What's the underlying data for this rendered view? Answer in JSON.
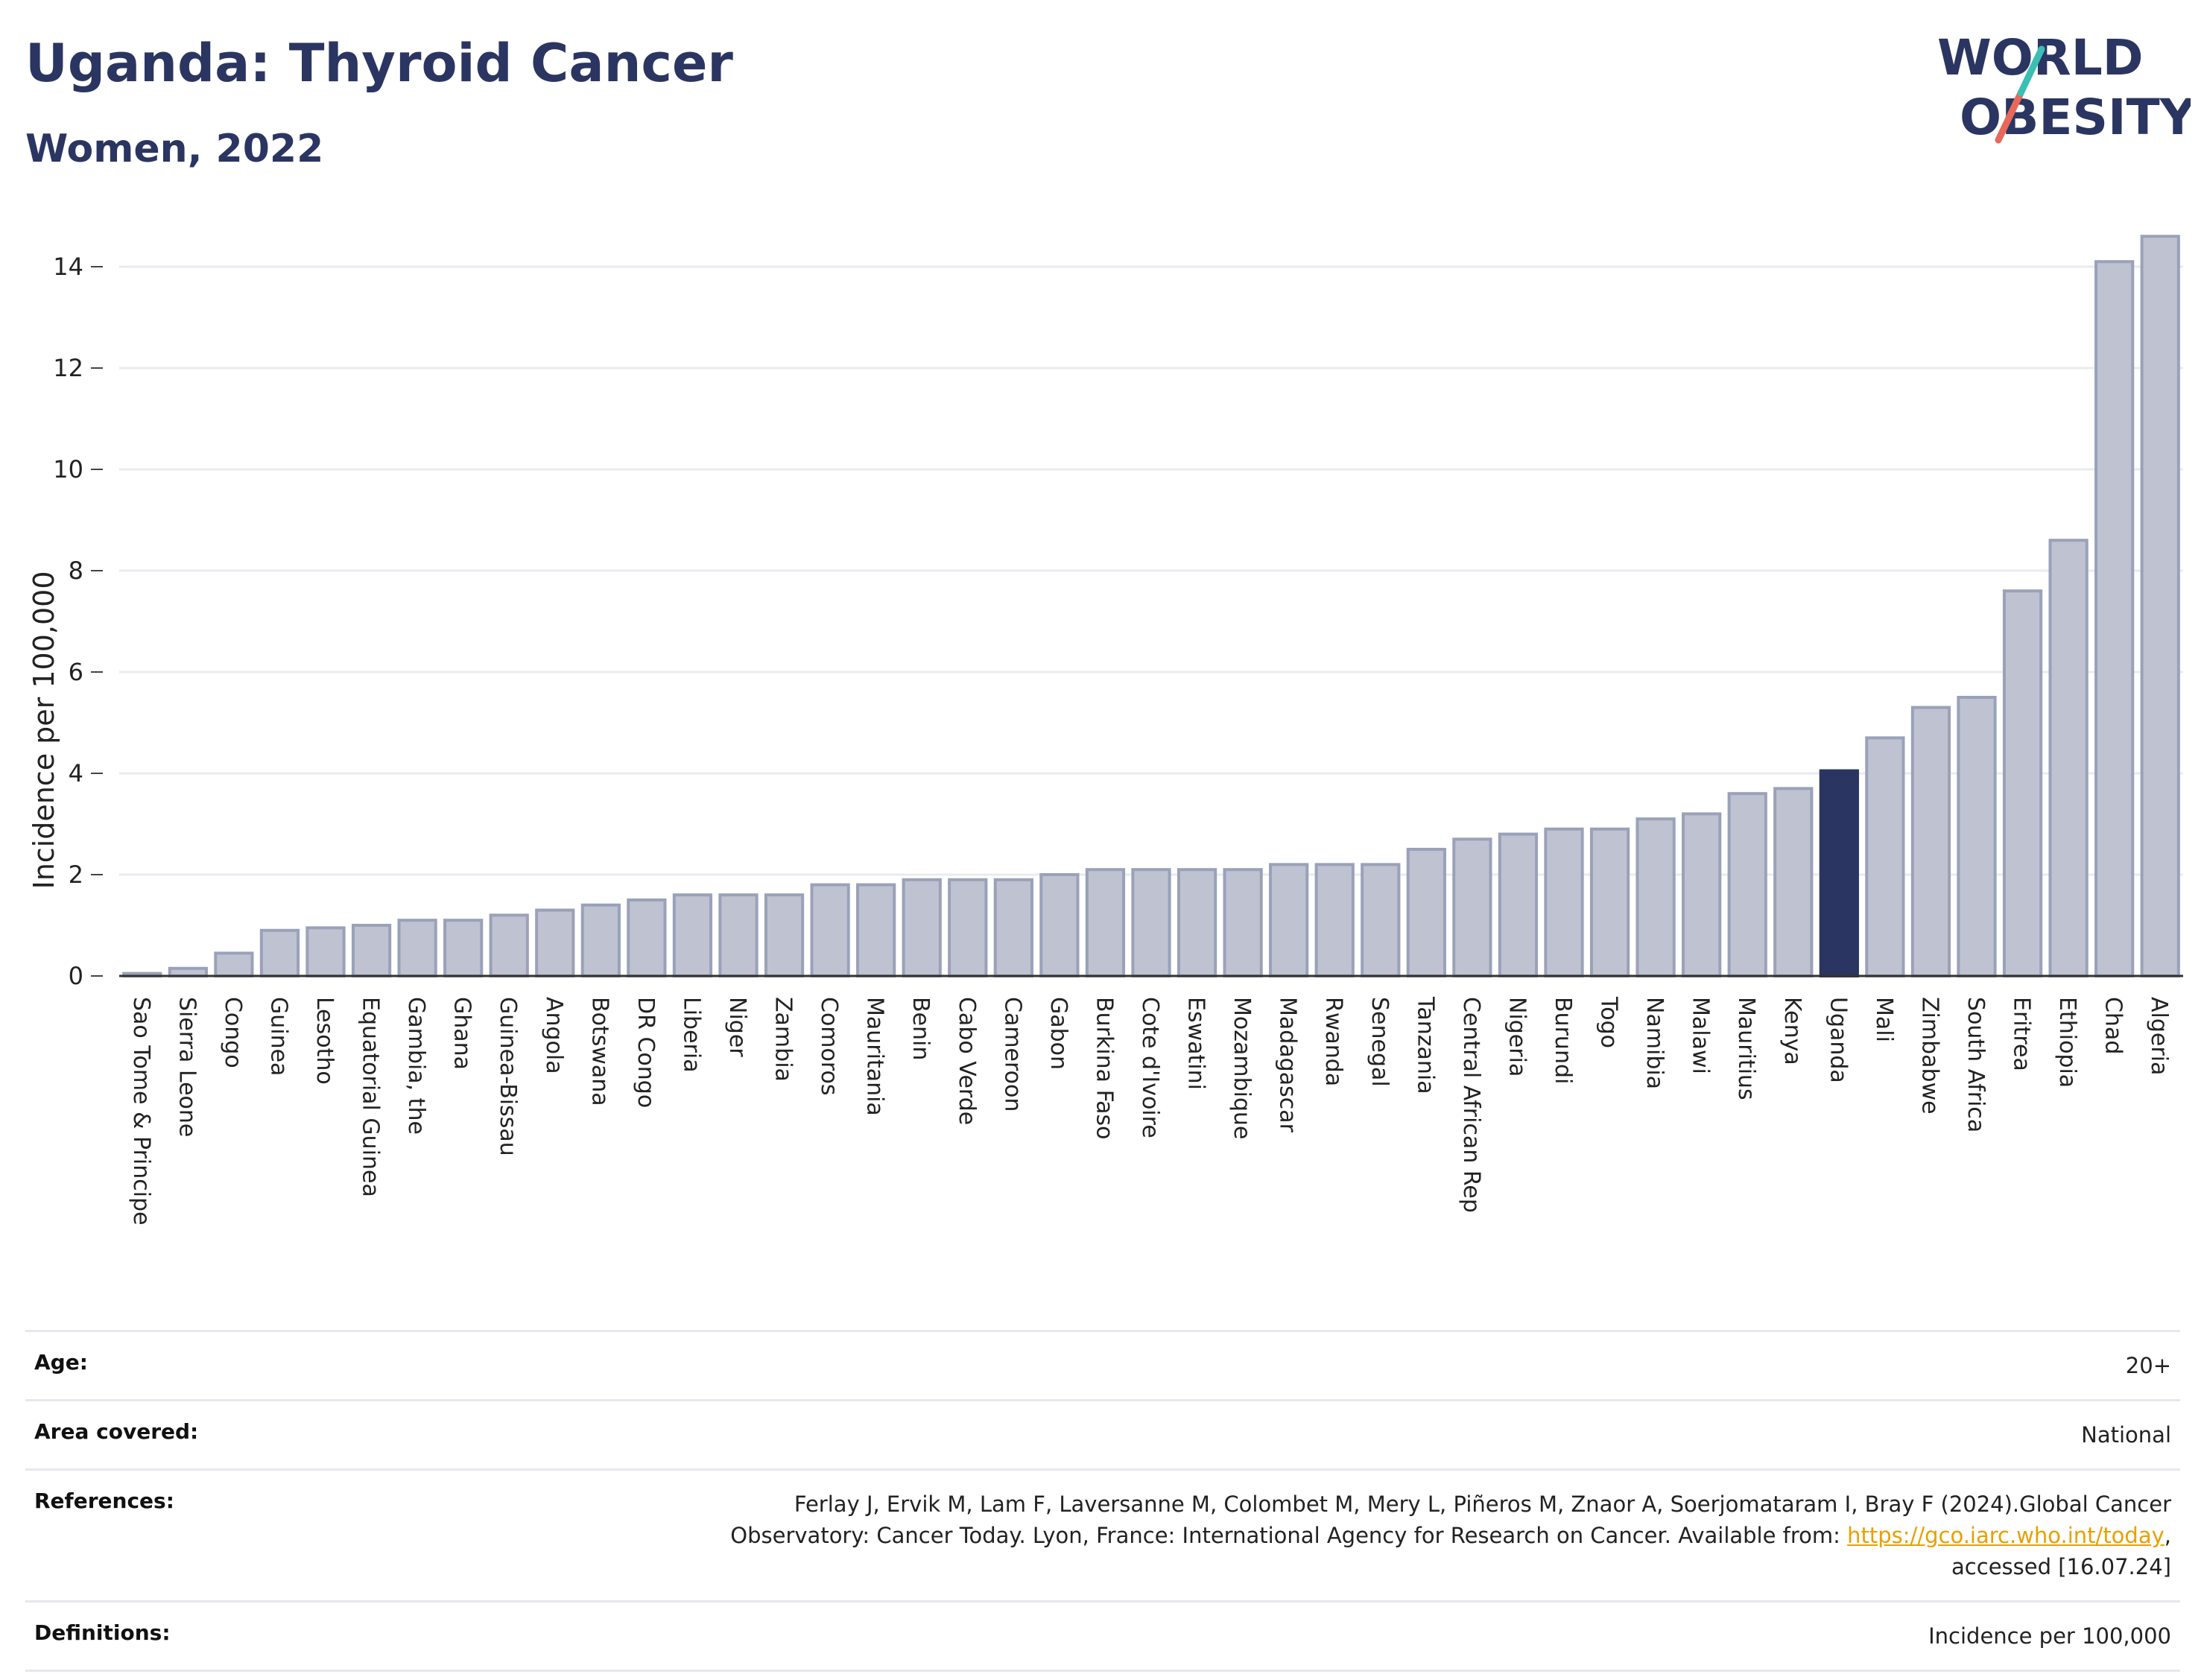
{
  "header": {
    "title": "Uganda: Thyroid Cancer",
    "subtitle": "Women, 2022"
  },
  "logo": {
    "line1": "WORLD",
    "line2": "OBESITY"
  },
  "colors": {
    "bar": "#bfc3d1",
    "bar_edge": "#9aa1b9",
    "highlight": "#2b3561",
    "title": "#2b3561",
    "logo_teal": "#3bbfb4",
    "logo_coral": "#e8685a",
    "link": "#e8a000"
  },
  "chart_data": {
    "type": "bar",
    "ylabel": "Incidence per 100,000",
    "ylim": [
      0,
      15
    ],
    "yticks": [
      0,
      2,
      4,
      6,
      8,
      10,
      12,
      14
    ],
    "grid": true,
    "highlight": "Uganda",
    "categories": [
      "Sao Tome & Principe",
      "Sierra Leone",
      "Congo",
      "Guinea",
      "Lesotho",
      "Equatorial Guinea",
      "Gambia, the",
      "Ghana",
      "Guinea-Bissau",
      "Angola",
      "Botswana",
      "DR Congo",
      "Liberia",
      "Niger",
      "Zambia",
      "Comoros",
      "Mauritania",
      "Benin",
      "Cabo Verde",
      "Cameroon",
      "Gabon",
      "Burkina Faso",
      "Cote d'Ivoire",
      "Eswatini",
      "Mozambique",
      "Madagascar",
      "Rwanda",
      "Senegal",
      "Tanzania",
      "Central African Rep",
      "Nigeria",
      "Burundi",
      "Togo",
      "Namibia",
      "Malawi",
      "Mauritius",
      "Kenya",
      "Uganda",
      "Mali",
      "Zimbabwe",
      "South Africa",
      "Eritrea",
      "Ethiopia",
      "Chad",
      "Algeria"
    ],
    "values": [
      0.05,
      0.15,
      0.45,
      0.9,
      0.95,
      1.0,
      1.1,
      1.1,
      1.2,
      1.3,
      1.4,
      1.5,
      1.6,
      1.6,
      1.6,
      1.8,
      1.8,
      1.9,
      1.9,
      1.9,
      2.0,
      2.1,
      2.1,
      2.1,
      2.1,
      2.2,
      2.2,
      2.2,
      2.5,
      2.7,
      2.8,
      2.9,
      2.9,
      3.1,
      3.2,
      3.6,
      3.7,
      4.05,
      4.7,
      5.3,
      5.5,
      7.6,
      8.6,
      14.1,
      14.6
    ]
  },
  "info": {
    "rows": [
      {
        "key": "Age:",
        "value": "20+"
      },
      {
        "key": "Area covered:",
        "value": "National"
      },
      {
        "key": "References:",
        "value_before": "Ferlay J, Ervik M, Lam F, Laversanne M, Colombet M, Mery L, Piñeros M, Znaor A, Soerjomataram I, Bray F (2024).Global Cancer Observatory: Cancer Today. Lyon, France: International Agency for Research on Cancer. Available from: ",
        "link": "https://gco.iarc.who.int/today",
        "value_after": ", accessed [16.07.24]"
      },
      {
        "key": "Definitions:",
        "value": "Incidence per 100,000"
      }
    ]
  }
}
